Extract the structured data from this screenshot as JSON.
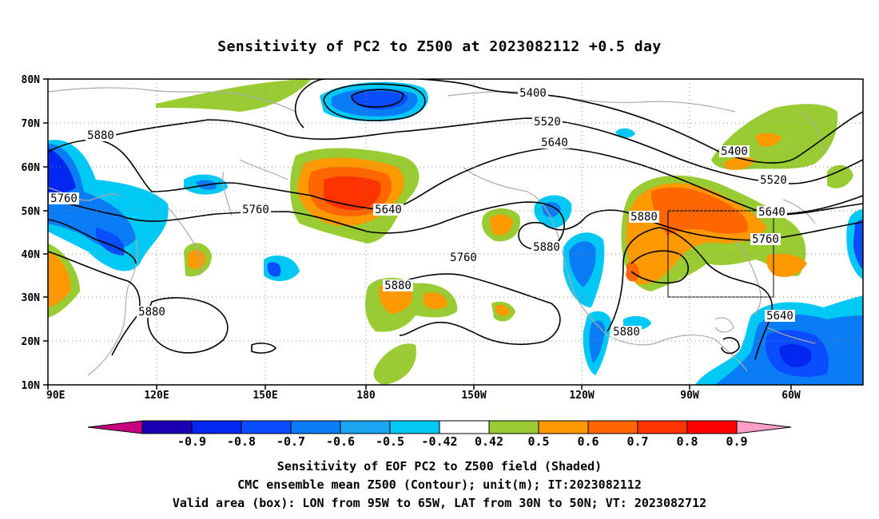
{
  "title": "Sensitivity of PC2 to Z500 at 2023082112 +0.5 day",
  "lon_ticks": [
    "90E",
    "120E",
    "150E",
    "180",
    "150W",
    "120W",
    "90W",
    "60W"
  ],
  "lat_ticks": [
    "80N",
    "70N",
    "60N",
    "50N",
    "40N",
    "30N",
    "20N",
    "10N"
  ],
  "contour_labels": [
    "5400",
    "5520",
    "5640",
    "5760",
    "5880",
    "5640",
    "5760",
    "5880",
    "5760",
    "5880",
    "5400",
    "5520",
    "5640",
    "5760",
    "5880",
    "5880",
    "5880",
    "5640"
  ],
  "colorbar": {
    "labels": [
      "-0.9",
      "-0.8",
      "-0.7",
      "-0.6",
      "-0.5",
      "-0.42",
      "0.42",
      "0.5",
      "0.6",
      "0.7",
      "0.8",
      "0.9"
    ],
    "colors": [
      "#1a00b4",
      "#0026f0",
      "#0a4cff",
      "#0a7cf5",
      "#19a5f0",
      "#00c8f5",
      "#ffffff",
      "#99cc33",
      "#ff9900",
      "#ff6600",
      "#ff3300",
      "#ff0000"
    ],
    "low_extend_color": "#c8007d",
    "high_extend_color": "#ff9ec8"
  },
  "captions": {
    "line1": "Sensitivity of EOF PC2 to Z500 field (Shaded)",
    "line2": "CMC ensemble mean Z500 (Contour); unit(m); IT:2023082112",
    "line3": "Valid area (box): LON from 95W to 65W, LAT from 30N to 50N; VT: 2023082712"
  },
  "valid_box": {
    "lon_min": "95W",
    "lon_max": "65W",
    "lat_min": "30N",
    "lat_max": "50N"
  }
}
